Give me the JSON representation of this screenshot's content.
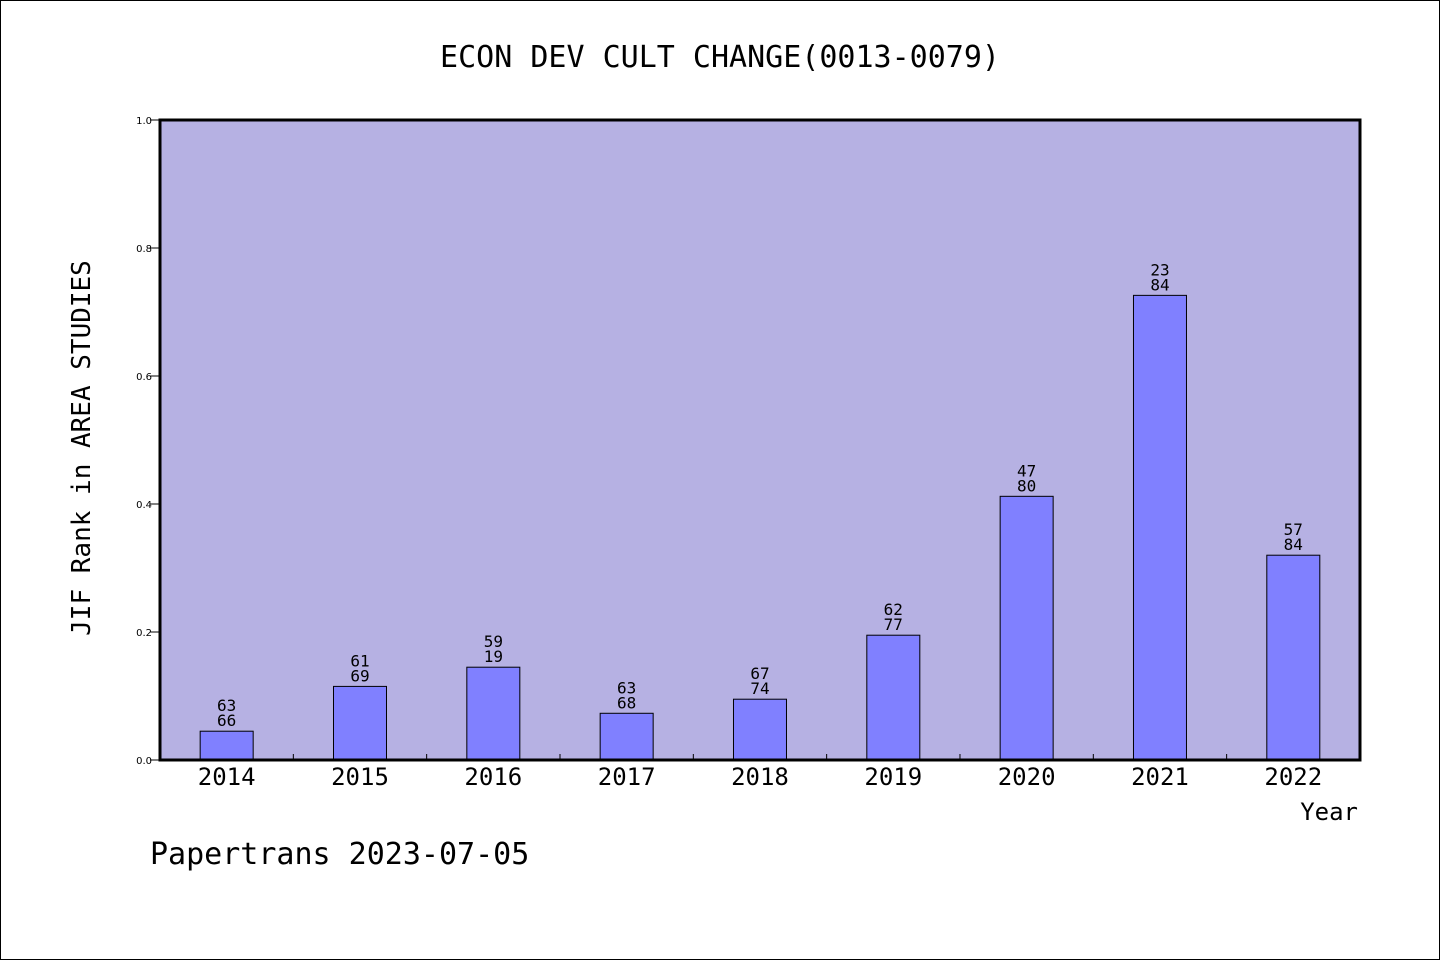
{
  "chart_data": {
    "type": "bar",
    "title": "ECON DEV CULT CHANGE(0013-0079)",
    "xlabel": "Year",
    "ylabel": "JIF Rank in AREA STUDIES",
    "ylim": [
      0,
      1.0
    ],
    "yticks": [
      "0.0",
      "0.2",
      "0.4",
      "0.6",
      "0.8",
      "1.0"
    ],
    "categories": [
      "2014",
      "2015",
      "2016",
      "2017",
      "2018",
      "2019",
      "2020",
      "2021",
      "2022"
    ],
    "values": [
      0.045,
      0.115,
      0.145,
      0.073,
      0.095,
      0.195,
      0.412,
      0.726,
      0.32
    ],
    "bar_labels": [
      [
        "63",
        "66"
      ],
      [
        "61",
        "69"
      ],
      [
        "59",
        "19"
      ],
      [
        "63",
        "68"
      ],
      [
        "67",
        "74"
      ],
      [
        "62",
        "77"
      ],
      [
        "47",
        "80"
      ],
      [
        "23",
        "84"
      ],
      [
        "57",
        "84"
      ]
    ],
    "colors": {
      "plot_background": "#b6b1e3",
      "bar_fill": "#8080ff",
      "bar_stroke": "#000000"
    },
    "grid": false,
    "legend": "none"
  },
  "footer": {
    "text": "Papertrans 2023-07-05"
  }
}
